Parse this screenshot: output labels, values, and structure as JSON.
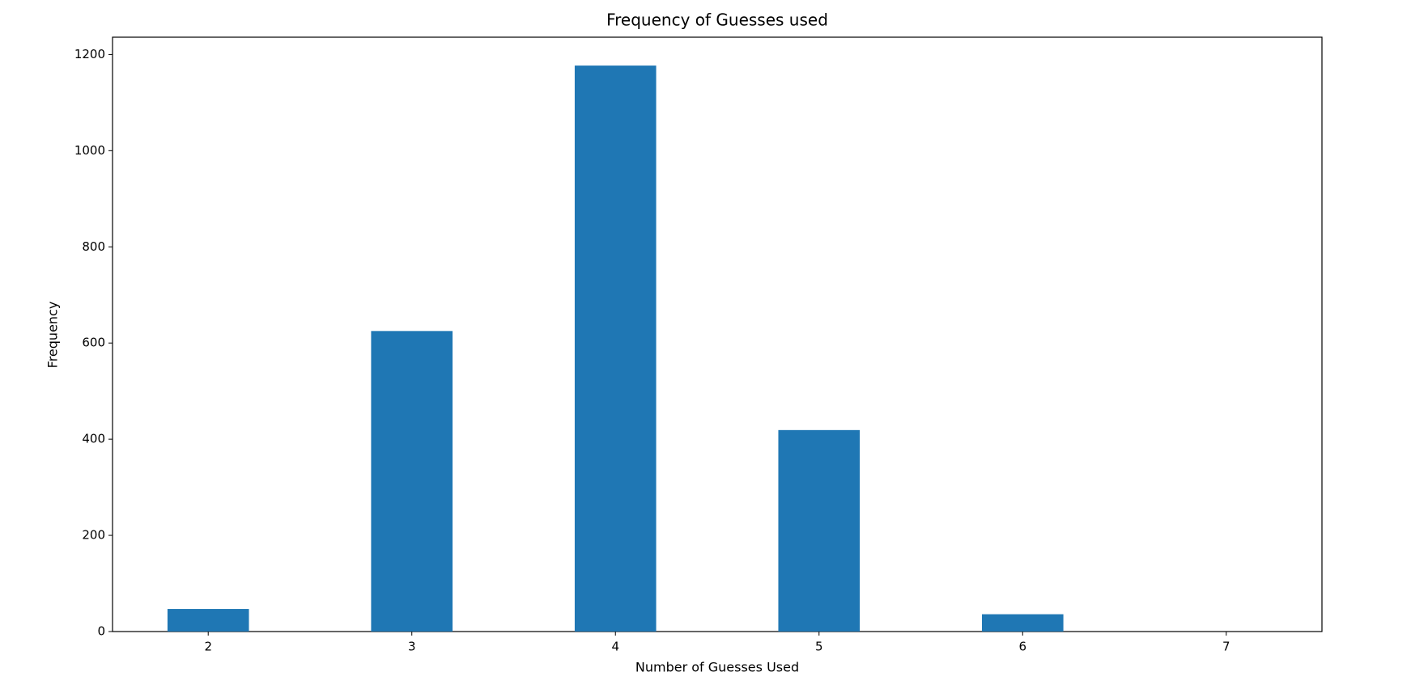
{
  "chart_data": {
    "type": "bar",
    "title": "Frequency of Guesses used",
    "x_label": "Number of Guesses Used",
    "y_label": "Frequency",
    "x": [
      2,
      3,
      4,
      5,
      6,
      7
    ],
    "values": [
      47,
      625,
      1177,
      419,
      36,
      0
    ],
    "color": "#1f77b4",
    "xlim": [
      1.53,
      7.47
    ],
    "xticks": [
      2,
      3,
      4,
      5,
      6,
      7
    ],
    "ylim": [
      0,
      1236
    ],
    "yticks": [
      0,
      200,
      400,
      600,
      800,
      1000,
      1200
    ],
    "grid": false
  }
}
